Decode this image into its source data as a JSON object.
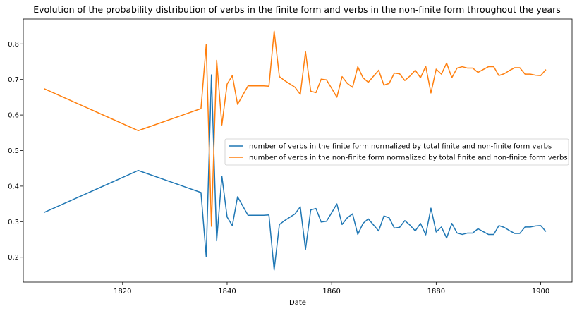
{
  "chart_data": {
    "type": "line",
    "title": "Evolution of the probability distribution of verbs in the finite form and verbs in the non-finite form throughout the years",
    "xlabel": "Date",
    "ylabel": "",
    "xlim": [
      1801,
      1906
    ],
    "ylim": [
      0.13,
      0.87
    ],
    "xticks": [
      1820,
      1840,
      1860,
      1880,
      1900
    ],
    "yticks": [
      0.2,
      0.3,
      0.4,
      0.5,
      0.6,
      0.7,
      0.8
    ],
    "grid": false,
    "legend_position": "center-right",
    "x": [
      1805,
      1823,
      1835,
      1836,
      1837,
      1838,
      1839,
      1840,
      1841,
      1842,
      1844,
      1847,
      1848,
      1849,
      1850,
      1851,
      1853,
      1854,
      1855,
      1856,
      1857,
      1858,
      1859,
      1860,
      1861,
      1862,
      1863,
      1864,
      1865,
      1866,
      1867,
      1868,
      1869,
      1870,
      1871,
      1872,
      1873,
      1874,
      1875,
      1876,
      1877,
      1878,
      1879,
      1880,
      1881,
      1882,
      1883,
      1884,
      1885,
      1886,
      1887,
      1888,
      1889,
      1890,
      1891,
      1892,
      1893,
      1894,
      1895,
      1896,
      1897,
      1898,
      1899,
      1900,
      1901
    ],
    "series": [
      {
        "name": "number of verbs in the finite form normalized by total finite and non-finite form verbs",
        "color": "#1f77b4",
        "values": [
          0.326,
          0.444,
          0.382,
          0.202,
          0.713,
          0.246,
          0.428,
          0.313,
          0.289,
          0.37,
          0.318,
          0.318,
          0.319,
          0.164,
          0.292,
          0.303,
          0.322,
          0.342,
          0.222,
          0.333,
          0.337,
          0.299,
          0.301,
          0.325,
          0.35,
          0.292,
          0.311,
          0.322,
          0.264,
          0.295,
          0.308,
          0.291,
          0.274,
          0.316,
          0.311,
          0.282,
          0.284,
          0.303,
          0.29,
          0.274,
          0.295,
          0.263,
          0.338,
          0.271,
          0.285,
          0.254,
          0.295,
          0.268,
          0.264,
          0.268,
          0.268,
          0.28,
          0.272,
          0.264,
          0.264,
          0.289,
          0.284,
          0.275,
          0.267,
          0.267,
          0.285,
          0.285,
          0.288,
          0.289,
          0.272
        ]
      },
      {
        "name": "number of verbs in the non-finite form normalized by total finite and non-finite form verbs",
        "color": "#ff7f0e",
        "values": [
          0.674,
          0.556,
          0.618,
          0.798,
          0.287,
          0.754,
          0.572,
          0.687,
          0.711,
          0.63,
          0.682,
          0.682,
          0.681,
          0.836,
          0.708,
          0.697,
          0.678,
          0.658,
          0.778,
          0.667,
          0.663,
          0.701,
          0.699,
          0.675,
          0.65,
          0.708,
          0.689,
          0.678,
          0.736,
          0.705,
          0.692,
          0.709,
          0.726,
          0.684,
          0.689,
          0.718,
          0.716,
          0.697,
          0.71,
          0.726,
          0.705,
          0.737,
          0.662,
          0.729,
          0.715,
          0.746,
          0.705,
          0.732,
          0.736,
          0.732,
          0.732,
          0.72,
          0.728,
          0.736,
          0.736,
          0.711,
          0.716,
          0.725,
          0.733,
          0.733,
          0.715,
          0.715,
          0.712,
          0.711,
          0.728
        ]
      }
    ]
  }
}
